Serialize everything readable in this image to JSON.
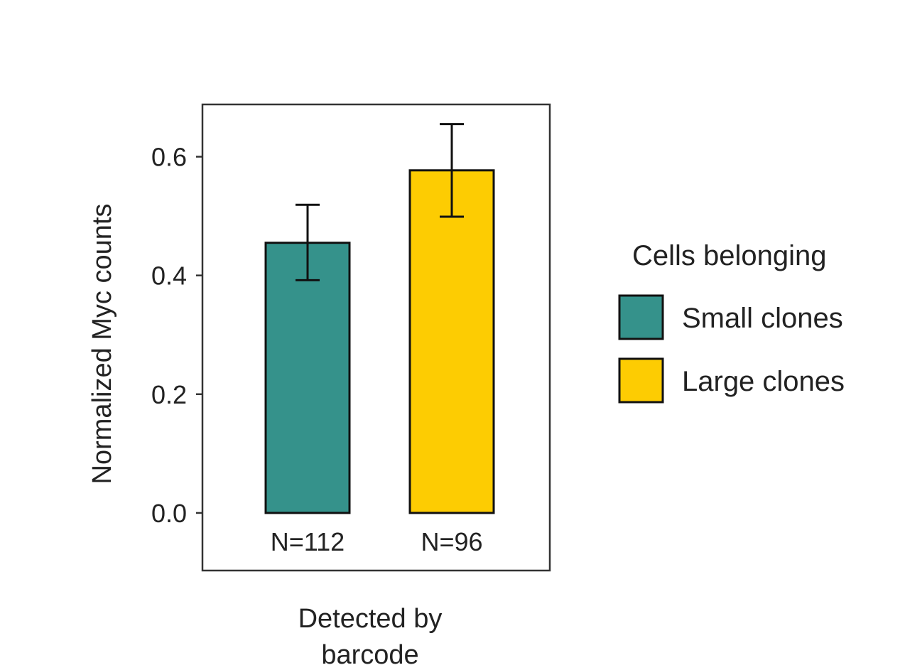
{
  "chart_data": {
    "type": "bar",
    "categories": [
      "Small clones",
      "Large clones"
    ],
    "values": [
      0.455,
      0.577
    ],
    "error_low": [
      0.392,
      0.499
    ],
    "error_high": [
      0.519,
      0.655
    ],
    "bar_labels": [
      "N=112",
      "N=96"
    ],
    "colors": [
      "#35928B",
      "#FDCC02"
    ],
    "ylabel": "Normalized Myc counts",
    "xlabel_lines": [
      "Detected by",
      "barcode"
    ],
    "ylim": [
      -0.097,
      0.688
    ],
    "yticks": [
      0.0,
      0.2,
      0.4,
      0.6
    ],
    "ytick_labels": [
      "0.0",
      "0.2",
      "0.4",
      "0.6"
    ],
    "legend": {
      "title": "Cells belonging",
      "position": "right",
      "items": [
        "Small clones",
        "Large clones"
      ]
    },
    "grid": false
  }
}
